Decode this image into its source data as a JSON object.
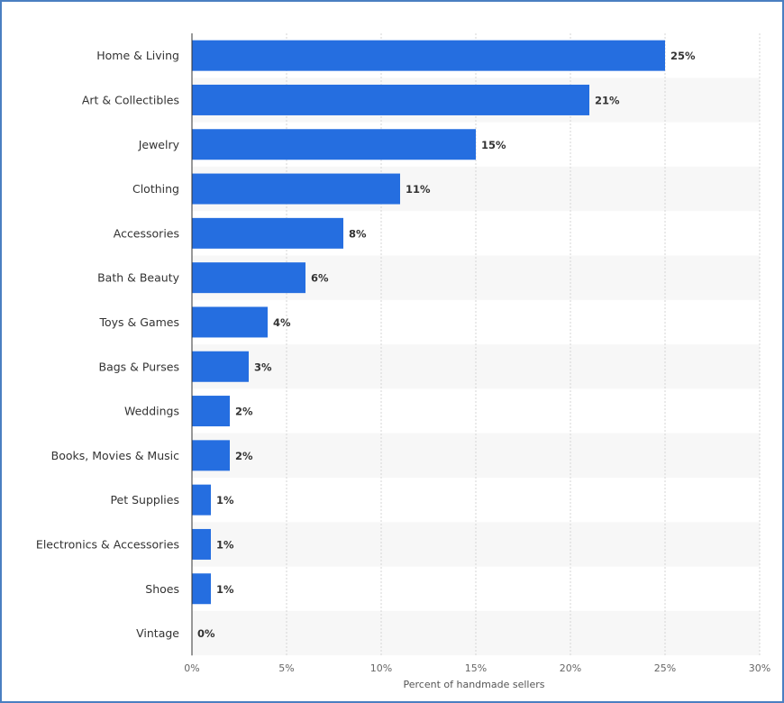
{
  "chart_data": {
    "type": "bar",
    "orientation": "horizontal",
    "categories": [
      "Home & Living",
      "Art & Collectibles",
      "Jewelry",
      "Clothing",
      "Accessories",
      "Bath & Beauty",
      "Toys & Games",
      "Bags & Purses",
      "Weddings",
      "Books, Movies & Music",
      "Pet Supplies",
      "Electronics & Accessories",
      "Shoes",
      "Vintage"
    ],
    "values": [
      25,
      21,
      15,
      11,
      8,
      6,
      4,
      3,
      2,
      2,
      1,
      1,
      1,
      0
    ],
    "value_labels": [
      "25%",
      "21%",
      "15%",
      "11%",
      "8%",
      "6%",
      "4%",
      "3%",
      "2%",
      "2%",
      "1%",
      "1%",
      "1%",
      "0%"
    ],
    "xlabel": "Percent of handmade sellers",
    "ylabel": "",
    "xlim": [
      0,
      30
    ],
    "x_ticks": [
      0,
      5,
      10,
      15,
      20,
      25,
      30
    ],
    "x_tick_labels": [
      "0%",
      "5%",
      "10%",
      "15%",
      "20%",
      "25%",
      "30%"
    ],
    "grid": true,
    "bar_color": "#256ee0",
    "band_color": "#f7f7f7"
  }
}
